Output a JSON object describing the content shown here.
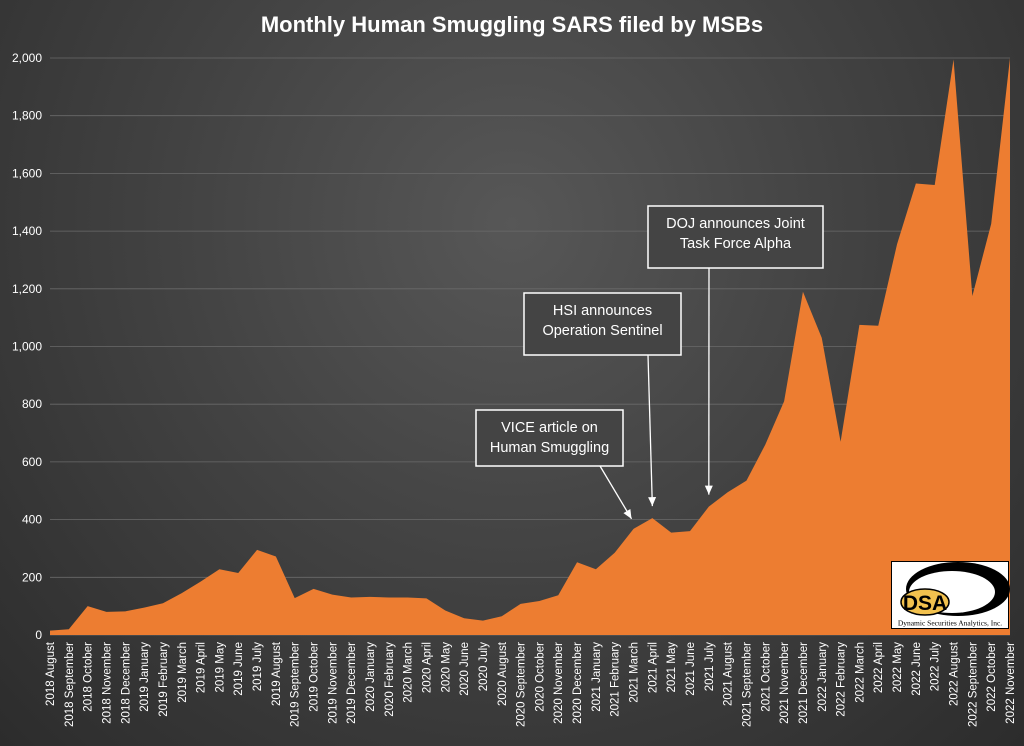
{
  "chart_data": {
    "type": "area",
    "title": "Monthly Human Smuggling SARS filed by MSBs",
    "xlabel": "",
    "ylabel": "",
    "ylim": [
      0,
      2000
    ],
    "yticks": [
      "0",
      "200",
      "400",
      "600",
      "800",
      "1,000",
      "1,200",
      "1,400",
      "1,600",
      "1,800",
      "2,000"
    ],
    "grid": true,
    "legend": "none",
    "colors": {
      "area": "#ed7d31",
      "background": "#3d3d3d",
      "grid": "#6a6a6a",
      "text": "#ffffff"
    },
    "categories": [
      "2018 August",
      "2018 September",
      "2018 October",
      "2018 November",
      "2018 December",
      "2019 January",
      "2019 February",
      "2019 March",
      "2019 April",
      "2019 May",
      "2019 June",
      "2019 July",
      "2019 August",
      "2019 September",
      "2019 October",
      "2019 November",
      "2019 December",
      "2020 January",
      "2020 February",
      "2020 March",
      "2020 April",
      "2020 May",
      "2020 June",
      "2020 July",
      "2020 August",
      "2020 September",
      "2020 October",
      "2020 November",
      "2020 December",
      "2021 January",
      "2021 February",
      "2021 March",
      "2021 April",
      "2021 May",
      "2021 June",
      "2021 July",
      "2021 August",
      "2021 September",
      "2021 October",
      "2021 November",
      "2021 December",
      "2022 January",
      "2022 February",
      "2022 March",
      "2022 April",
      "2022 May",
      "2022 June",
      "2022 July",
      "2022 August",
      "2022 September",
      "2022 October",
      "2022 November"
    ],
    "values": [
      15,
      20,
      100,
      80,
      82,
      95,
      110,
      145,
      185,
      228,
      215,
      295,
      272,
      128,
      160,
      140,
      130,
      132,
      130,
      130,
      127,
      85,
      58,
      50,
      65,
      108,
      118,
      138,
      252,
      228,
      285,
      368,
      405,
      355,
      360,
      445,
      495,
      535,
      660,
      810,
      1190,
      1030,
      670,
      1075,
      1072,
      1355,
      1565,
      1560,
      1995,
      1175,
      1425,
      2000
    ],
    "annotations": [
      {
        "lines": [
          "VICE article on",
          "Human Smuggling"
        ],
        "target": "2021 March"
      },
      {
        "lines": [
          "HSI announces",
          "Operation Sentinel"
        ],
        "target": "2021 April"
      },
      {
        "lines": [
          "DOJ announces Joint",
          "Task Force Alpha"
        ],
        "target": "2021 July"
      }
    ]
  },
  "logo": {
    "mark": "DSA",
    "caption": "Dynamic Securities Analytics, Inc."
  }
}
